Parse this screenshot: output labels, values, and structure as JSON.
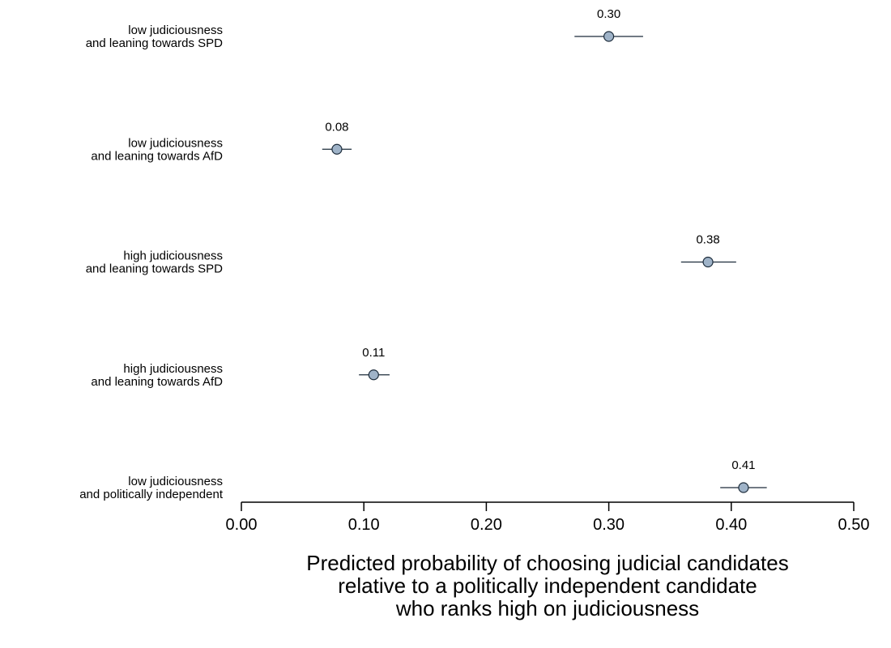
{
  "chart_data": {
    "type": "scatter",
    "title": "",
    "ylabel": "",
    "xlabel_lines": [
      "Predicted probability of choosing judicial candidates",
      "relative to a politically independent candidate",
      "who ranks high on judiciousness"
    ],
    "xlim": [
      0,
      0.5
    ],
    "xticks": [
      "0.00",
      "0.10",
      "0.20",
      "0.30",
      "0.40",
      "0.50"
    ],
    "xtick_values": [
      0,
      0.1,
      0.2,
      0.3,
      0.4,
      0.5
    ],
    "grid": false,
    "marker_color": "#9fb3c8",
    "line_color": "#1c2b3a",
    "categories": [
      {
        "lines": [
          "low judiciousness",
          "and leaning towards SPD"
        ],
        "value": 0.3,
        "ci": [
          0.272,
          0.328
        ],
        "label": "0.30"
      },
      {
        "lines": [
          "low judiciousness",
          "and leaning towards AfD"
        ],
        "value": 0.078,
        "ci": [
          0.066,
          0.09
        ],
        "label": "0.08"
      },
      {
        "lines": [
          "high judiciousness",
          "and leaning towards SPD"
        ],
        "value": 0.381,
        "ci": [
          0.359,
          0.404
        ],
        "label": "0.38"
      },
      {
        "lines": [
          "high judiciousness",
          "and leaning towards AfD"
        ],
        "value": 0.108,
        "ci": [
          0.096,
          0.121
        ],
        "label": "0.11"
      },
      {
        "lines": [
          "low judiciousness",
          "and politically independent"
        ],
        "value": 0.41,
        "ci": [
          0.391,
          0.429
        ],
        "label": "0.41"
      }
    ]
  }
}
